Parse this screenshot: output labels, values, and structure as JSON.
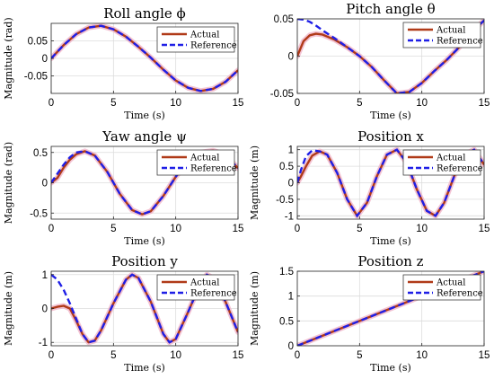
{
  "figure": {
    "legend_actual": "Actual",
    "legend_reference": "Reference",
    "colors": {
      "actual": "#b03a18",
      "actual_glow": "#f0b4c8",
      "reference": "#1f1fe6"
    }
  },
  "chart_data": [
    {
      "type": "line",
      "title": "Roll angle ϕ",
      "xlabel": "Time (s)",
      "ylabel": "Magnitude (rad)",
      "xlim": [
        0,
        15
      ],
      "ylim": [
        -0.1,
        0.1
      ],
      "x_ticks": [
        "0",
        "5",
        "10",
        "15"
      ],
      "y_ticks": [
        "0.05",
        "0",
        "-0.05"
      ],
      "grid": true,
      "legend": "top-right",
      "series": [
        {
          "name": "Actual",
          "x": [
            0,
            1,
            2,
            3,
            4,
            5,
            6,
            7,
            8,
            9,
            10,
            11,
            12,
            13,
            14,
            15
          ],
          "y": [
            0,
            0.038,
            0.069,
            0.088,
            0.093,
            0.083,
            0.062,
            0.033,
            0.002,
            -0.032,
            -0.063,
            -0.084,
            -0.093,
            -0.087,
            -0.067,
            -0.034
          ]
        },
        {
          "name": "Reference",
          "x": [
            0,
            1,
            2,
            3,
            4,
            5,
            6,
            7,
            8,
            9,
            10,
            11,
            12,
            13,
            14,
            15
          ],
          "y": [
            0,
            0.038,
            0.069,
            0.088,
            0.093,
            0.083,
            0.062,
            0.033,
            0.002,
            -0.032,
            -0.063,
            -0.084,
            -0.093,
            -0.087,
            -0.067,
            -0.034
          ]
        }
      ]
    },
    {
      "type": "line",
      "title": "Pitch angle θ",
      "xlabel": "Time (s)",
      "ylabel": "",
      "xlim": [
        0,
        15
      ],
      "ylim": [
        -0.05,
        0.05
      ],
      "x_ticks": [
        "0",
        "5",
        "10",
        "15"
      ],
      "y_ticks": [
        "0.05",
        "0",
        "-0.05"
      ],
      "grid": true,
      "legend": "top-right",
      "series": [
        {
          "name": "Actual",
          "x": [
            0,
            0.5,
            1,
            1.5,
            2,
            3,
            4,
            5,
            6,
            7,
            8,
            9,
            10,
            11,
            12,
            13,
            14,
            15
          ],
          "y": [
            0,
            0.02,
            0.028,
            0.03,
            0.029,
            0.022,
            0.012,
            0.0,
            -0.015,
            -0.033,
            -0.05,
            -0.048,
            -0.036,
            -0.02,
            -0.005,
            0.012,
            0.032,
            0.048
          ]
        },
        {
          "name": "Reference",
          "x": [
            0,
            0.5,
            1,
            1.5,
            2,
            3,
            4,
            5,
            6,
            7,
            8,
            9,
            10,
            11,
            12,
            13,
            14,
            15
          ],
          "y": [
            0.05,
            0.049,
            0.046,
            0.041,
            0.035,
            0.024,
            0.012,
            0.0,
            -0.015,
            -0.033,
            -0.05,
            -0.048,
            -0.036,
            -0.02,
            -0.005,
            0.012,
            0.032,
            0.048
          ]
        }
      ]
    },
    {
      "type": "line",
      "title": "Yaw angle ψ",
      "xlabel": "Time (s)",
      "ylabel": "Magnitude (rad)",
      "xlim": [
        0,
        15
      ],
      "ylim": [
        -0.6,
        0.6
      ],
      "x_ticks": [
        "0",
        "5",
        "10",
        "15"
      ],
      "y_ticks": [
        "0.5",
        "0",
        "-0.5"
      ],
      "grid": true,
      "legend": "top-right",
      "series": [
        {
          "name": "Actual",
          "x": [
            0,
            0.5,
            1,
            1.5,
            2,
            2.7,
            3.5,
            4.5,
            5.5,
            6.5,
            7.3,
            8,
            9,
            10,
            11,
            12,
            13,
            14,
            15
          ],
          "y": [
            0,
            0.08,
            0.25,
            0.38,
            0.47,
            0.52,
            0.45,
            0.18,
            -0.18,
            -0.45,
            -0.52,
            -0.47,
            -0.22,
            0.1,
            0.35,
            0.5,
            0.53,
            0.46,
            0.24
          ]
        },
        {
          "name": "Reference",
          "x": [
            0,
            0.5,
            1,
            1.5,
            2,
            2.7,
            3.5,
            4.5,
            5.5,
            6.5,
            7.3,
            8,
            9,
            10,
            11,
            12,
            13,
            14,
            15
          ],
          "y": [
            0,
            0.15,
            0.3,
            0.42,
            0.5,
            0.52,
            0.45,
            0.18,
            -0.18,
            -0.45,
            -0.52,
            -0.47,
            -0.22,
            0.1,
            0.35,
            0.5,
            0.53,
            0.46,
            0.24
          ]
        }
      ]
    },
    {
      "type": "line",
      "title": "Position x",
      "xlabel": "Time (s)",
      "ylabel": "Magnitude (m)",
      "xlim": [
        0,
        15
      ],
      "ylim": [
        -1.1,
        1.1
      ],
      "x_ticks": [
        "0",
        "5",
        "10",
        "15"
      ],
      "y_ticks": [
        "1",
        "0.5",
        "0",
        "-0.5",
        "-1"
      ],
      "grid": true,
      "legend": "top-right",
      "series": [
        {
          "name": "Actual",
          "x": [
            0,
            0.3,
            0.7,
            1.2,
            1.8,
            2.4,
            3.2,
            4,
            4.8,
            5.6,
            6.4,
            7.2,
            8,
            8.8,
            9.6,
            10.4,
            11.1,
            11.8,
            12.6,
            13.4,
            14.2,
            15
          ],
          "y": [
            0,
            0.2,
            0.5,
            0.82,
            0.95,
            0.85,
            0.3,
            -0.5,
            -1,
            -0.6,
            0.2,
            0.85,
            1,
            0.6,
            -0.2,
            -0.85,
            -1,
            -0.6,
            0.2,
            0.85,
            1,
            0.55
          ]
        },
        {
          "name": "Reference",
          "x": [
            0,
            0.3,
            0.7,
            1.2,
            1.8,
            2.4,
            3.2,
            4,
            4.8,
            5.6,
            6.4,
            7.2,
            8,
            8.8,
            9.6,
            10.4,
            11.1,
            11.8,
            12.6,
            13.4,
            14.2,
            15
          ],
          "y": [
            0,
            0.4,
            0.8,
            0.98,
            0.95,
            0.85,
            0.3,
            -0.5,
            -1,
            -0.6,
            0.2,
            0.85,
            1,
            0.6,
            -0.2,
            -0.85,
            -1,
            -0.6,
            0.2,
            0.85,
            1,
            0.55
          ]
        }
      ]
    },
    {
      "type": "line",
      "title": "Position y",
      "xlabel": "Time (s)",
      "ylabel": "Magnitude (m)",
      "xlim": [
        0,
        15
      ],
      "ylim": [
        -1.1,
        1.1
      ],
      "x_ticks": [
        "0",
        "5",
        "10",
        "15"
      ],
      "y_ticks": [
        "1",
        "0",
        "-1"
      ],
      "grid": true,
      "legend": "top-right",
      "series": [
        {
          "name": "Actual",
          "x": [
            0,
            0.5,
            1,
            1.5,
            2,
            2.5,
            3,
            3.5,
            4,
            5,
            6,
            6.5,
            7,
            8,
            9,
            9.5,
            10,
            11,
            12,
            12.5,
            13,
            14,
            15
          ],
          "y": [
            0,
            0.05,
            0.08,
            0.0,
            -0.35,
            -0.75,
            -1,
            -0.95,
            -0.65,
            0.15,
            0.85,
            1,
            0.9,
            0.2,
            -0.75,
            -1,
            -0.9,
            -0.1,
            0.75,
            1,
            0.9,
            0.2,
            -0.7
          ]
        },
        {
          "name": "Reference",
          "x": [
            0,
            0.5,
            1,
            1.5,
            2,
            2.5,
            3,
            3.5,
            4,
            5,
            6,
            6.5,
            7,
            8,
            9,
            9.5,
            10,
            11,
            12,
            12.5,
            13,
            14,
            15
          ],
          "y": [
            1,
            0.85,
            0.55,
            0.15,
            -0.3,
            -0.75,
            -1,
            -0.95,
            -0.65,
            0.15,
            0.85,
            1,
            0.9,
            0.2,
            -0.75,
            -1,
            -0.9,
            -0.1,
            0.75,
            1,
            0.9,
            0.2,
            -0.7
          ]
        }
      ]
    },
    {
      "type": "line",
      "title": "Position z",
      "xlabel": "Time (s)",
      "ylabel": "Magnitude (m)",
      "xlim": [
        0,
        15
      ],
      "ylim": [
        0,
        1.5
      ],
      "x_ticks": [
        "0",
        "5",
        "10",
        "15"
      ],
      "y_ticks": [
        "1.5",
        "1",
        "0.5",
        "0"
      ],
      "grid": true,
      "legend": "top-right",
      "series": [
        {
          "name": "Actual",
          "x": [
            0,
            15
          ],
          "y": [
            0,
            1.5
          ]
        },
        {
          "name": "Reference",
          "x": [
            0,
            15
          ],
          "y": [
            0,
            1.5
          ]
        }
      ]
    }
  ]
}
